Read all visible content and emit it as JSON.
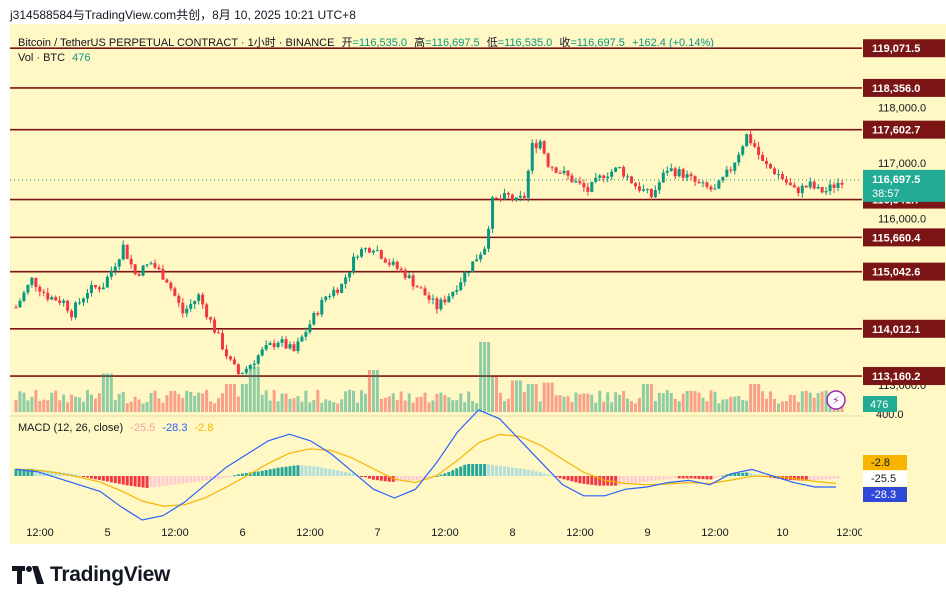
{
  "header_line": "j314588584与TradingView.com共创，8月 10, 2025 10:21 UTC+8",
  "legend": {
    "symbol": "Bitcoin / TetherUS PERPETUAL CONTRACT · 1小时 · BINANCE",
    "open_label": "开",
    "open": "=116,535.0",
    "high_label": "高",
    "high": "=116,697.5",
    "low_label": "低",
    "low": "=116,535.0",
    "close_label": "收",
    "close": "=116,697.5",
    "change": "+162.4 (+0.14%)",
    "vol_label": "Vol · BTC",
    "vol_value": "476",
    "macd_label": "MACD (12, 26, close)",
    "macd_values": [
      "-25.5",
      "-28.3",
      "-2.8"
    ]
  },
  "brand": "TradingView",
  "colors": {
    "background": "#fff7c4",
    "up": "#089981",
    "down": "#f23645",
    "level_line": "#7b1515",
    "macd_line": "#2962ff",
    "signal_line": "#f7b500",
    "price_badge": "#22ab94"
  },
  "chart_data": {
    "type": "candlestick",
    "y_price_range": [
      112800,
      119400
    ],
    "levels": [
      119071.5,
      118356.0,
      117602.7,
      116341.7,
      115660.4,
      115042.6,
      114012.1,
      113160.2
    ],
    "level_labels": [
      "119,071.5",
      "118,356.0",
      "117,602.7",
      "116,341.7",
      "115,660.4",
      "115,042.6",
      "114,012.1",
      "113,160.2"
    ],
    "price_ticks": [
      "118,000.0",
      "117,000.0",
      "116,000.0",
      "113,000.0"
    ],
    "current_price": "116,697.5",
    "countdown": "38:57",
    "volume_value": "476",
    "volume_tick": "400.0",
    "x_labels": [
      "12:00",
      "5",
      "12:00",
      "6",
      "12:00",
      "7",
      "12:00",
      "8",
      "12:00",
      "9",
      "12:00",
      "10",
      "12:00"
    ],
    "macd": {
      "params": "12, 26, close",
      "macd_value": -28.3,
      "signal_value": -2.8,
      "histogram_value": -25.5,
      "badges": [
        "-2.8",
        "-25.5",
        "-28.3"
      ]
    },
    "close_path": [
      [
        0,
        114400
      ],
      [
        4,
        114900
      ],
      [
        8,
        114600
      ],
      [
        12,
        114500
      ],
      [
        14,
        114300
      ],
      [
        18,
        114700
      ],
      [
        22,
        114800
      ],
      [
        25,
        115200
      ],
      [
        27,
        115500
      ],
      [
        30,
        115000
      ],
      [
        34,
        115200
      ],
      [
        38,
        114900
      ],
      [
        42,
        114300
      ],
      [
        46,
        114600
      ],
      [
        50,
        114000
      ],
      [
        52,
        113700
      ],
      [
        54,
        113400
      ],
      [
        56,
        113200
      ],
      [
        58,
        113300
      ],
      [
        62,
        113600
      ],
      [
        66,
        113800
      ],
      [
        70,
        113600
      ],
      [
        74,
        114100
      ],
      [
        78,
        114600
      ],
      [
        82,
        114800
      ],
      [
        86,
        115400
      ],
      [
        90,
        115500
      ],
      [
        94,
        115200
      ],
      [
        98,
        115000
      ],
      [
        102,
        114700
      ],
      [
        106,
        114400
      ],
      [
        110,
        114700
      ],
      [
        114,
        115100
      ],
      [
        118,
        115500
      ],
      [
        120,
        116300
      ],
      [
        124,
        116400
      ],
      [
        126,
        116300
      ],
      [
        128,
        116400
      ],
      [
        130,
        117300
      ],
      [
        132,
        117400
      ],
      [
        134,
        117000
      ],
      [
        136,
        116900
      ],
      [
        140,
        116700
      ],
      [
        144,
        116500
      ],
      [
        148,
        116800
      ],
      [
        152,
        116900
      ],
      [
        156,
        116600
      ],
      [
        160,
        116400
      ],
      [
        164,
        116900
      ],
      [
        168,
        116800
      ],
      [
        172,
        116600
      ],
      [
        176,
        116500
      ],
      [
        180,
        116900
      ],
      [
        184,
        117500
      ],
      [
        186,
        117300
      ],
      [
        188,
        117000
      ],
      [
        192,
        116800
      ],
      [
        196,
        116500
      ],
      [
        200,
        116600
      ],
      [
        202,
        116500
      ],
      [
        204,
        116500
      ],
      [
        206,
        116600
      ],
      [
        208,
        116700
      ]
    ],
    "volume_spikes": [
      [
        23,
        0.55
      ],
      [
        54,
        0.4
      ],
      [
        58,
        0.4
      ],
      [
        60,
        0.65
      ],
      [
        90,
        0.6
      ],
      [
        118,
        1.0
      ],
      [
        120,
        0.5
      ],
      [
        126,
        0.45
      ],
      [
        130,
        0.4
      ],
      [
        134,
        0.42
      ],
      [
        159,
        0.4
      ],
      [
        186,
        0.4
      ],
      [
        170,
        0.3
      ]
    ],
    "macd_hist_shape": [
      0.6,
      0.6,
      0.4,
      0.2,
      -0.2,
      -0.5,
      -0.8,
      -1.0,
      -0.8,
      -0.6,
      -0.4,
      -0.2,
      0.2,
      0.4,
      0.7,
      0.9,
      0.8,
      0.5,
      0.2,
      -0.3,
      -0.5,
      -0.4,
      -0.2,
      0.3,
      1.0,
      1.0,
      0.8,
      0.6,
      0.3,
      -0.2,
      -0.6,
      -0.8,
      -0.8,
      -0.6,
      -0.4,
      -0.2,
      -0.2,
      -0.3,
      0.2,
      0.3,
      -0.1,
      -0.3,
      -0.4,
      -0.3
    ],
    "macd_line_shape": [
      0.3,
      0.2,
      -0.1,
      -0.4,
      -0.7,
      -1.4,
      -2.0,
      -1.8,
      -1.2,
      -0.4,
      0.4,
      1.0,
      1.6,
      1.9,
      1.6,
      1.0,
      0.2,
      -0.6,
      -1.0,
      -0.6,
      0.6,
      2.0,
      3.0,
      2.6,
      1.6,
      0.6,
      -0.4,
      -0.9,
      -0.9,
      -0.6,
      -0.5,
      -0.3,
      -0.2,
      -0.4,
      0.1,
      0.3,
      0.0,
      -0.3,
      -0.5,
      -0.5
    ]
  }
}
